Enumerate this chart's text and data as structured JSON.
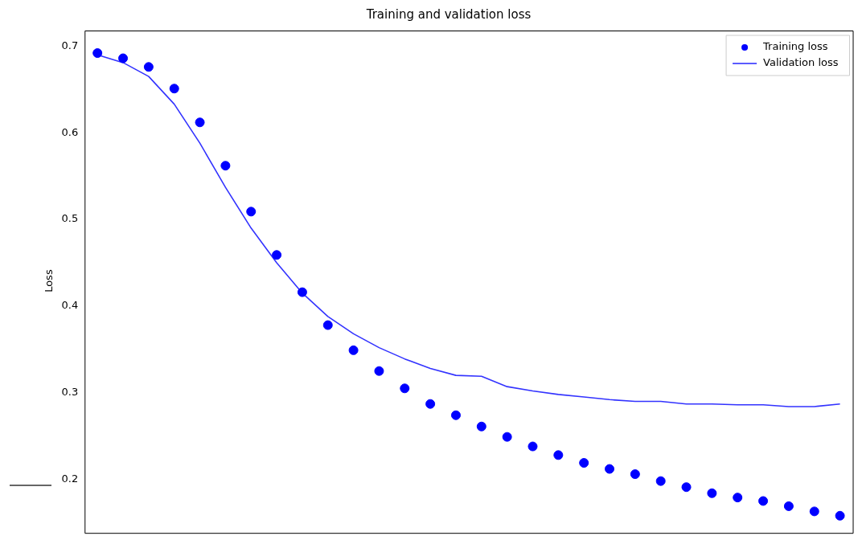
{
  "chart_data": {
    "type": "line",
    "title": "Training and validation loss",
    "ylabel": "Loss",
    "categories": [
      null,
      null,
      null,
      null,
      null,
      null,
      null,
      null,
      null,
      null,
      null,
      null,
      null,
      null,
      null,
      null,
      null,
      null,
      null,
      null,
      null,
      null,
      null,
      null,
      null,
      null,
      null,
      null,
      null,
      null
    ],
    "series": [
      {
        "name": "Training loss",
        "type": "scatter",
        "marker": "circle",
        "color": "#0000ff",
        "values": [
          0.692,
          0.686,
          0.676,
          0.651,
          0.612,
          0.562,
          0.509,
          0.459,
          0.416,
          0.378,
          0.349,
          0.325,
          0.305,
          0.287,
          0.274,
          0.261,
          0.249,
          0.238,
          0.228,
          0.219,
          0.212,
          0.206,
          0.198,
          0.191,
          0.184,
          0.179,
          0.175,
          0.169,
          0.163,
          0.158
        ]
      },
      {
        "name": "Validation loss",
        "type": "line",
        "line_style": "solid",
        "color": "#3333ff",
        "values": [
          0.69,
          0.681,
          0.665,
          0.633,
          0.588,
          0.537,
          0.49,
          0.45,
          0.415,
          0.388,
          0.368,
          0.352,
          0.339,
          0.328,
          0.32,
          0.319,
          0.307,
          0.302,
          0.298,
          0.295,
          0.292,
          0.29,
          0.29,
          0.287,
          0.287,
          0.286,
          0.286,
          0.284,
          0.284,
          0.287
        ]
      }
    ],
    "ylim": [
      0.14,
      0.718
    ],
    "yticks": [
      0.2,
      0.3,
      0.4,
      0.5,
      0.6,
      0.7
    ],
    "grid": false,
    "legend": "top right",
    "tick_labels": "y"
  }
}
